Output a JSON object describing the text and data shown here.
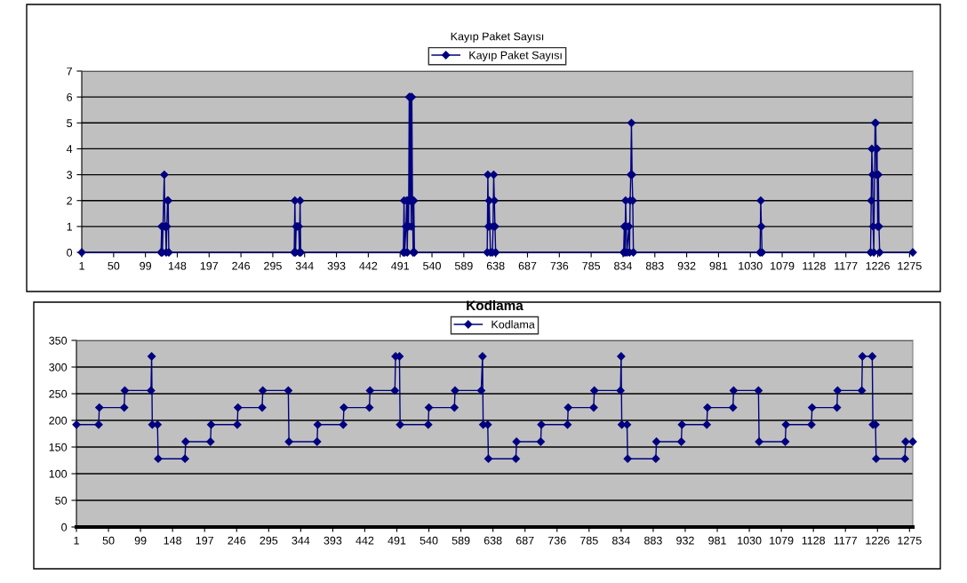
{
  "chart_data": [
    {
      "type": "line",
      "title": "Kayıp Paket Sayısı",
      "legend": "top",
      "grid": "y",
      "marker": "diamond",
      "xlim": [
        1,
        1280
      ],
      "xticks": [
        1,
        50,
        99,
        148,
        197,
        246,
        295,
        344,
        393,
        442,
        491,
        540,
        589,
        638,
        687,
        736,
        785,
        834,
        883,
        932,
        981,
        1030,
        1079,
        1128,
        1177,
        1226,
        1275
      ],
      "ylim": [
        0,
        7
      ],
      "yticks": [
        0,
        1,
        2,
        3,
        4,
        5,
        6,
        7
      ],
      "series": [
        {
          "name": "Kayıp Paket Sayısı",
          "color": "#000080",
          "x": [
            1,
            123,
            124,
            125,
            126,
            128,
            129,
            130,
            131,
            132,
            133,
            134,
            135,
            328,
            329,
            330,
            331,
            333,
            335,
            336,
            337,
            338,
            496,
            497,
            498,
            500,
            501,
            502,
            503,
            504,
            505,
            506,
            507,
            508,
            509,
            510,
            511,
            512,
            513,
            625,
            626,
            627,
            628,
            629,
            630,
            633,
            634,
            635,
            636,
            637,
            638,
            835,
            836,
            837,
            838,
            839,
            840,
            843,
            844,
            845,
            846,
            847,
            848,
            849,
            850,
            1045,
            1046,
            1047,
            1048,
            1215,
            1216,
            1217,
            1218,
            1219,
            1220,
            1222,
            1223,
            1224,
            1225,
            1226,
            1227,
            1228,
            1229,
            1280
          ],
          "values": [
            0,
            0,
            1,
            0,
            1,
            3,
            1,
            1,
            0,
            1,
            2,
            2,
            0,
            0,
            2,
            0,
            1,
            1,
            1,
            0,
            2,
            0,
            0,
            2,
            0,
            1,
            2,
            0,
            2,
            1,
            6,
            2,
            6,
            1,
            6,
            2,
            0,
            2,
            0,
            0,
            3,
            1,
            2,
            1,
            0,
            0,
            1,
            3,
            2,
            1,
            0,
            0,
            1,
            0,
            2,
            1,
            0,
            1,
            0,
            2,
            3,
            5,
            3,
            2,
            0,
            0,
            2,
            1,
            0,
            0,
            2,
            4,
            3,
            1,
            0,
            5,
            5,
            3,
            4,
            1,
            3,
            1,
            0,
            0
          ]
        }
      ]
    },
    {
      "type": "line",
      "title": "Kodlama",
      "legend": "top",
      "grid": "y",
      "marker": "diamond",
      "xlim": [
        1,
        1280
      ],
      "xticks": [
        1,
        50,
        99,
        148,
        197,
        246,
        295,
        344,
        393,
        442,
        491,
        540,
        589,
        638,
        687,
        736,
        785,
        834,
        883,
        932,
        981,
        1030,
        1079,
        1128,
        1177,
        1226,
        1275
      ],
      "ylim": [
        0,
        350
      ],
      "yticks": [
        0,
        50,
        100,
        150,
        200,
        250,
        300,
        350
      ],
      "series": [
        {
          "name": "Kodlama",
          "color": "#000080",
          "x": [
            1,
            35,
            36,
            74,
            75,
            115,
            116,
            117,
            125,
            126,
            167,
            168,
            206,
            207,
            247,
            248,
            285,
            286,
            325,
            326,
            369,
            370,
            409,
            410,
            449,
            450,
            488,
            489,
            495,
            496,
            539,
            540,
            579,
            580,
            620,
            622,
            623,
            630,
            631,
            673,
            674,
            711,
            712,
            752,
            753,
            792,
            793,
            833,
            834,
            835,
            843,
            844,
            887,
            888,
            926,
            927,
            965,
            966,
            1005,
            1006,
            1044,
            1045,
            1085,
            1086,
            1125,
            1126,
            1164,
            1165,
            1202,
            1203,
            1218,
            1219,
            1223,
            1224,
            1268,
            1269,
            1280
          ],
          "values": [
            192,
            192,
            224,
            224,
            256,
            256,
            320,
            192,
            192,
            128,
            128,
            160,
            160,
            192,
            192,
            224,
            224,
            256,
            256,
            160,
            160,
            192,
            192,
            224,
            224,
            256,
            256,
            320,
            320,
            192,
            192,
            224,
            224,
            256,
            256,
            320,
            192,
            192,
            128,
            128,
            160,
            160,
            192,
            192,
            224,
            224,
            256,
            256,
            320,
            192,
            192,
            128,
            128,
            160,
            160,
            192,
            192,
            224,
            224,
            256,
            256,
            160,
            160,
            192,
            192,
            224,
            224,
            256,
            256,
            320,
            320,
            192,
            192,
            128,
            128,
            160,
            160
          ]
        }
      ]
    }
  ]
}
